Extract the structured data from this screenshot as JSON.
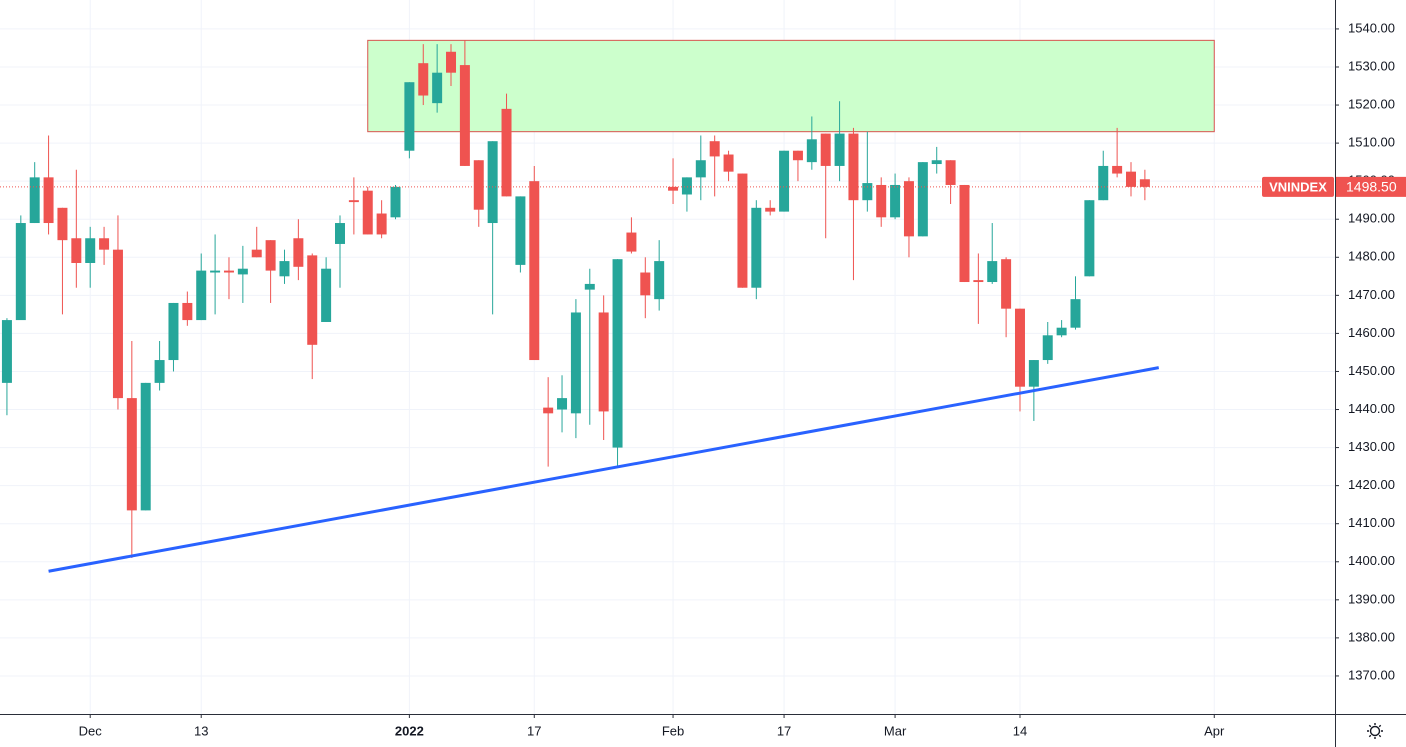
{
  "chart_data": {
    "type": "candlestick",
    "symbol": "VNINDEX",
    "last": {
      "value": 1498.5,
      "label": "1498.50"
    },
    "up_color": "#26a69a",
    "down_color": "#ef5350",
    "grid": true,
    "xlim": [
      -0.5,
      95.7
    ],
    "xticks": [
      {
        "value": 6,
        "label": "Dec"
      },
      {
        "value": 14,
        "label": "13"
      },
      {
        "value": 29,
        "label": "2022"
      },
      {
        "value": 38,
        "label": "17"
      },
      {
        "value": 48,
        "label": "Feb"
      },
      {
        "value": 56,
        "label": "17"
      },
      {
        "value": 64,
        "label": "Mar"
      },
      {
        "value": 73,
        "label": "14"
      },
      {
        "value": 87,
        "label": "Apr"
      }
    ],
    "ylim": [
      1360,
      1547.6
    ],
    "yticks": [
      {
        "value": 1370,
        "label": "1370.00"
      },
      {
        "value": 1380,
        "label": "1380.00"
      },
      {
        "value": 1390,
        "label": "1390.00"
      },
      {
        "value": 1400,
        "label": "1400.00"
      },
      {
        "value": 1410,
        "label": "1410.00"
      },
      {
        "value": 1420,
        "label": "1420.00"
      },
      {
        "value": 1430,
        "label": "1430.00"
      },
      {
        "value": 1440,
        "label": "1440.00"
      },
      {
        "value": 1450,
        "label": "1450.00"
      },
      {
        "value": 1460,
        "label": "1460.00"
      },
      {
        "value": 1470,
        "label": "1470.00"
      },
      {
        "value": 1480,
        "label": "1480.00"
      },
      {
        "value": 1490,
        "label": "1490.00"
      },
      {
        "value": 1500,
        "label": "1500.00"
      },
      {
        "value": 1510,
        "label": "1510.00"
      },
      {
        "value": 1520,
        "label": "1520.00"
      },
      {
        "value": 1530,
        "label": "1530.00"
      },
      {
        "value": 1540,
        "label": "1540.00"
      }
    ],
    "open": [
      1447,
      1463.5,
      1489,
      1501,
      1493,
      1485,
      1478.5,
      1485,
      1482,
      1443,
      1413.5,
      1447,
      1453,
      1468,
      1463.5,
      1476,
      1476.5,
      1475.5,
      1482,
      1484.5,
      1475,
      1485,
      1480.5,
      1463,
      1483.5,
      1495,
      1497.5,
      1491.5,
      1490.5,
      1508,
      1531,
      1520.5,
      1534,
      1530.5,
      1505.5,
      1489,
      1519,
      1478,
      1500,
      1440.5,
      1440,
      1439,
      1471.5,
      1465.5,
      1430,
      1486.5,
      1476,
      1469,
      1498.5,
      1496.5,
      1501,
      1510.5,
      1507,
      1502,
      1472,
      1493,
      1492,
      1508,
      1505,
      1512.5,
      1504,
      1512.5,
      1495,
      1499,
      1490.5,
      1500,
      1485.5,
      1504.5,
      1505.5,
      1499,
      1474,
      1473.5,
      1479.5,
      1466.5,
      1446,
      1453,
      1459.5,
      1461.5,
      1475,
      1495,
      1504,
      1502.5,
      1500.5
    ],
    "high": [
      1464,
      1491,
      1505,
      1512,
      1493,
      1503,
      1488,
      1488,
      1491,
      1458,
      1447,
      1458,
      1468,
      1471,
      1481,
      1486,
      1480,
      1483,
      1488,
      1484.5,
      1482,
      1490,
      1481,
      1480,
      1491,
      1501,
      1498.5,
      1495,
      1499,
      1526,
      1536,
      1536,
      1536,
      1537,
      1505.5,
      1510.5,
      1523,
      1496,
      1504,
      1448.5,
      1449,
      1469,
      1477,
      1470,
      1479.5,
      1490.5,
      1480,
      1484.5,
      1506,
      1501,
      1512,
      1512,
      1508,
      1502,
      1495,
      1495,
      1508,
      1508,
      1517,
      1512.5,
      1521,
      1514,
      1513,
      1501,
      1502,
      1501,
      1505,
      1509,
      1505.5,
      1499,
      1481,
      1489,
      1480,
      1466.5,
      1453,
      1463,
      1463.5,
      1475,
      1495,
      1508,
      1514,
      1505,
      1503
    ],
    "low": [
      1438.5,
      1464,
      1489,
      1486,
      1465,
      1472,
      1472,
      1478,
      1440,
      1401,
      1413.5,
      1445,
      1450,
      1462,
      1463.5,
      1465,
      1469,
      1468,
      1480,
      1468,
      1473,
      1474,
      1448,
      1463,
      1472,
      1486,
      1486,
      1485,
      1490,
      1506,
      1520,
      1518,
      1525,
      1504,
      1488,
      1465,
      1496,
      1476,
      1453,
      1425,
      1434,
      1432.5,
      1436,
      1432,
      1425,
      1481,
      1464,
      1466,
      1494,
      1492,
      1495,
      1496,
      1500,
      1472,
      1469,
      1491,
      1492,
      1500,
      1503,
      1485,
      1500,
      1474,
      1492,
      1488,
      1490,
      1480,
      1485.5,
      1502,
      1494,
      1473.5,
      1462.5,
      1473,
      1459,
      1439.5,
      1437,
      1452,
      1459,
      1461,
      1475,
      1495,
      1501,
      1496,
      1495
    ],
    "close": [
      1463.5,
      1489,
      1501,
      1489,
      1484.5,
      1478.5,
      1485,
      1482,
      1443,
      1413.5,
      1447,
      1453,
      1468,
      1463.5,
      1476.5,
      1476.5,
      1476,
      1477,
      1480,
      1476.5,
      1479,
      1477.5,
      1457,
      1477,
      1489,
      1494.5,
      1486,
      1486,
      1498.5,
      1526,
      1522.5,
      1528.5,
      1528.5,
      1504,
      1492.5,
      1510.5,
      1496,
      1496,
      1453,
      1439,
      1443,
      1465.5,
      1473,
      1439.5,
      1479.5,
      1481.5,
      1470,
      1479,
      1497.5,
      1501,
      1505.5,
      1506.5,
      1502.5,
      1472,
      1493,
      1492,
      1508,
      1505.5,
      1511,
      1504,
      1512.5,
      1495,
      1499.5,
      1490.5,
      1499,
      1485.5,
      1505,
      1505.5,
      1499,
      1473.5,
      1473.5,
      1479,
      1466.5,
      1446,
      1453,
      1459.5,
      1461.5,
      1469,
      1495,
      1504,
      1502,
      1498.5,
      1498.5
    ],
    "zone": {
      "x": [
        26,
        87
      ],
      "y": [
        1513,
        1537
      ],
      "color": "#ccffcc",
      "border": "#d9534f"
    },
    "trendline": {
      "x": [
        3,
        83
      ],
      "y": [
        1397.5,
        1451
      ],
      "color": "#2962ff"
    }
  }
}
